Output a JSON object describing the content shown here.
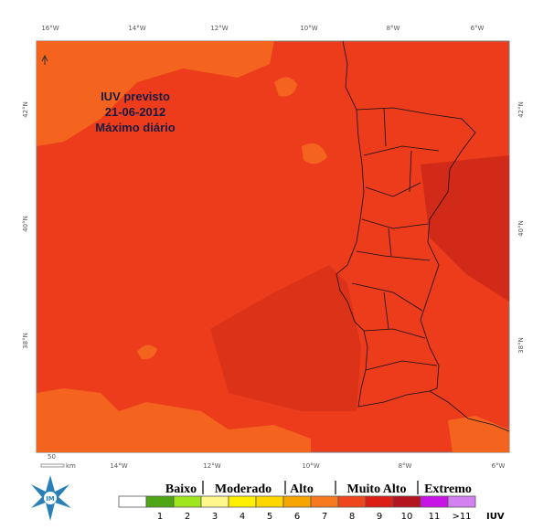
{
  "map": {
    "title": [
      "IUV previsto",
      "21-06-2012",
      "Máximo diário"
    ],
    "top_ticks": [
      "16°W",
      "14°W",
      "12°W",
      "10°W",
      "8°W",
      "6°W"
    ],
    "bottom_ticks": [
      "14°W",
      "12°W",
      "10°W",
      "8°W",
      "6°W"
    ],
    "left_ticks": [
      "42°N",
      "40°N",
      "38°N"
    ],
    "right_ticks": [
      "42°N",
      "40°N",
      "38°N"
    ],
    "scale": {
      "value": "50",
      "unit": "km"
    }
  },
  "legend": {
    "groups": [
      "Baixo",
      "Moderado",
      "Alto",
      "Muito Alto",
      "Extremo"
    ],
    "items": [
      {
        "color": "#ffffff"
      },
      {
        "label": "1",
        "color": "#4ea614"
      },
      {
        "label": "2",
        "color": "#a0e61e"
      },
      {
        "label": "3",
        "color": "#fff78c"
      },
      {
        "label": "4",
        "color": "#ffef00"
      },
      {
        "label": "5",
        "color": "#ffd700"
      },
      {
        "label": "6",
        "color": "#f7a500"
      },
      {
        "label": "7",
        "color": "#f77a1e"
      },
      {
        "label": "8",
        "color": "#f0461e"
      },
      {
        "label": "9",
        "color": "#dc1e14"
      },
      {
        "label": "10",
        "color": "#b4141e"
      },
      {
        "label": "11",
        "color": "#c814e6"
      },
      {
        "label": ">11",
        "color": "#d282f0"
      }
    ],
    "unit": "IUV"
  }
}
